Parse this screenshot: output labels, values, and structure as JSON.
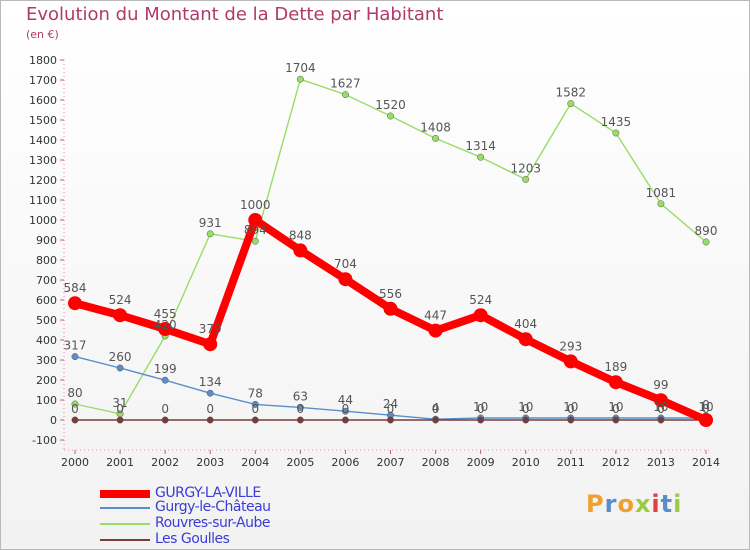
{
  "chart_data": {
    "type": "line",
    "title": "Evolution du Montant de la Dette par Habitant",
    "subtitle": "(en €)",
    "x": [
      "2000",
      "2001",
      "2002",
      "2003",
      "2004",
      "2005",
      "2006",
      "2007",
      "2008",
      "2009",
      "2010",
      "2011",
      "2012",
      "2013",
      "2014"
    ],
    "ylim": [
      -100,
      1800
    ],
    "yticks": [
      -100,
      0,
      100,
      200,
      300,
      400,
      500,
      600,
      700,
      800,
      900,
      1000,
      1100,
      1200,
      1300,
      1400,
      1500,
      1600,
      1700,
      1800
    ],
    "grid": false,
    "legend_position": "bottom-left",
    "series": [
      {
        "name": "GURGY-LA-VILLE",
        "color": "#ff0000",
        "values": [
          584,
          524,
          455,
          379,
          1000,
          848,
          704,
          556,
          447,
          524,
          404,
          293,
          189,
          99,
          0
        ],
        "labels": [
          "584",
          "524",
          "455",
          "379",
          "1000",
          "848",
          "704",
          "556",
          "447",
          "524",
          "404",
          "293",
          "189",
          "99",
          "0"
        ]
      },
      {
        "name": "Gurgy-le-Château",
        "color": "#5b8ec8",
        "values": [
          317,
          260,
          199,
          134,
          78,
          63,
          44,
          24,
          4,
          10,
          10,
          10,
          10,
          10,
          10
        ],
        "labels": [
          "317",
          "260",
          "199",
          "134",
          "78",
          "63",
          "44",
          "24",
          "4",
          "10",
          "10",
          "10",
          "10",
          "10",
          "10"
        ]
      },
      {
        "name": "Rouvres-sur-Aube",
        "color": "#99dd66",
        "values": [
          80,
          31,
          420,
          931,
          894,
          1704,
          1627,
          1520,
          1408,
          1314,
          1203,
          1582,
          1435,
          1081,
          890
        ],
        "labels": [
          "80",
          "31",
          "420",
          "931",
          "894",
          "1704",
          "1627",
          "1520",
          "1408",
          "1314",
          "1203",
          "1582",
          "1435",
          "1081",
          "890"
        ]
      },
      {
        "name": "Les Goulles",
        "color": "#7a3b3b",
        "values": [
          0,
          0,
          0,
          0,
          0,
          0,
          0,
          0,
          0,
          0,
          0,
          0,
          0,
          0,
          0
        ],
        "labels": [
          "0",
          "0",
          "0",
          "0",
          "0",
          "0",
          "0",
          "0",
          "0",
          "0",
          "0",
          "0",
          "0",
          "0",
          "0"
        ]
      }
    ]
  },
  "brand": {
    "text": "Proxiti"
  }
}
